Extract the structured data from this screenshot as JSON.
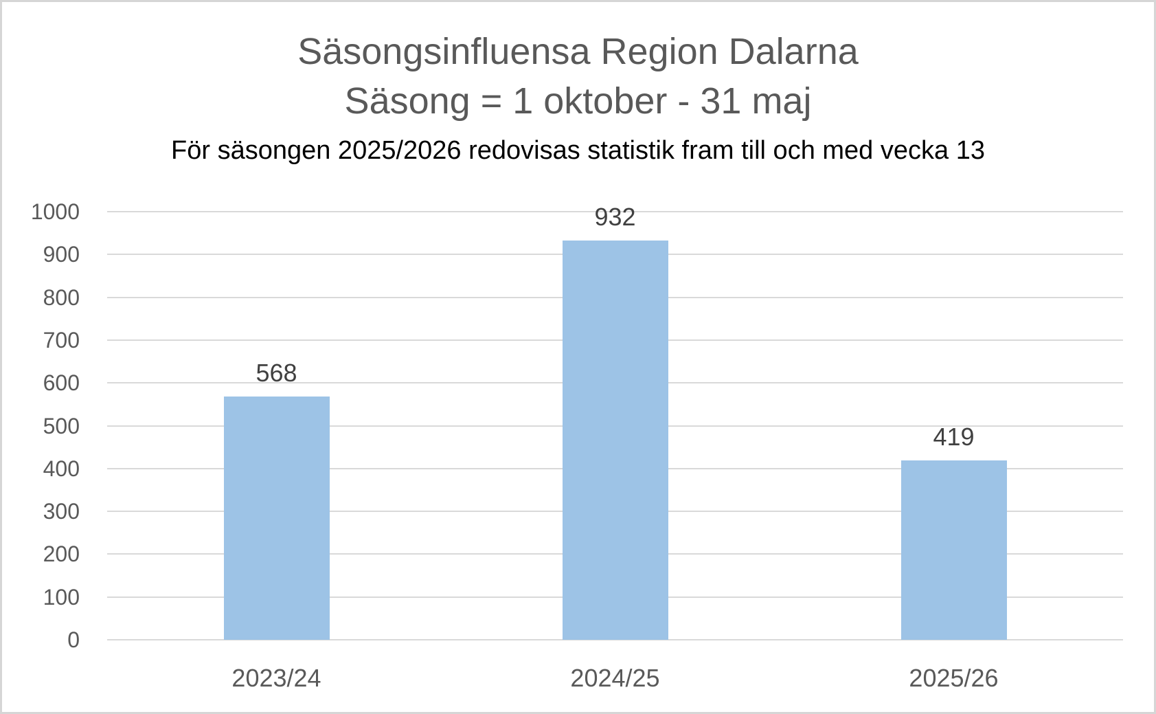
{
  "chart_data": {
    "type": "bar",
    "title": "Säsongsinfluensa Region Dalarna",
    "subtitle": "Säsong = 1 oktober - 31 maj",
    "note": "För säsongen 2025/2026 redovisas statistik fram till och med vecka 13",
    "categories": [
      "2023/24",
      "2024/25",
      "2025/26"
    ],
    "values": [
      568,
      932,
      419
    ],
    "data_labels": [
      "568",
      "932",
      "419"
    ],
    "xlabel": "",
    "ylabel": "",
    "ylim": [
      0,
      1000
    ],
    "yticks": [
      0,
      100,
      200,
      300,
      400,
      500,
      600,
      700,
      800,
      900,
      1000
    ],
    "grid": "horizontal",
    "legend_position": "none",
    "colors": {
      "bar_fill": "#9DC3E6",
      "gridline": "#D9D9D9",
      "title_text": "#595959",
      "note_text": "#000000",
      "axis_tick_text": "#595959",
      "data_label_text": "#404040",
      "canvas_border": "#D6D6D6",
      "background": "#FFFFFF"
    }
  }
}
